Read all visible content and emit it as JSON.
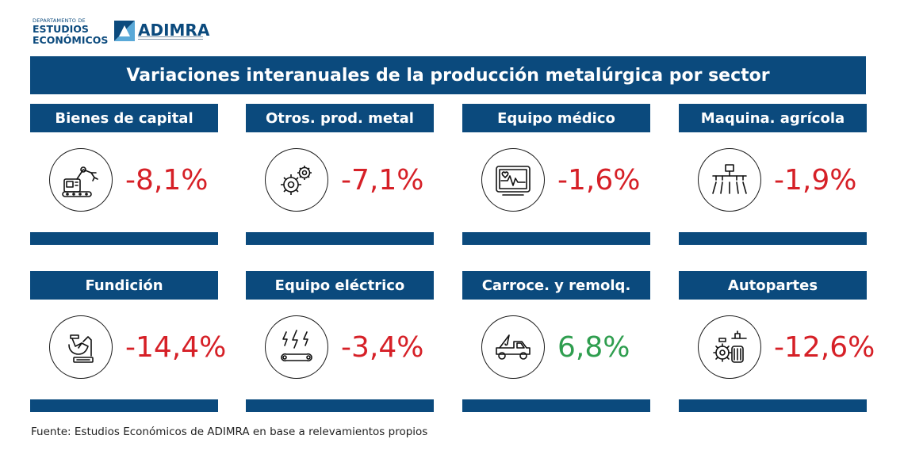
{
  "header": {
    "dept_small": "DEPARTAMENTO DE",
    "dept_line1": "ESTUDIOS",
    "dept_line2": "ECONÓMICOS",
    "brand": "ADIMRA",
    "brand_color": "#0b4a7d"
  },
  "title": "Variaciones interanuales de la producción metalúrgica por sector",
  "colors": {
    "header_bg": "#0b4a7d",
    "negative": "#d62027",
    "positive": "#2f9e4f"
  },
  "sectors": [
    {
      "name": "Bienes de capital",
      "value": "-8,1%",
      "trend": "negative",
      "icon": "robot-arm-icon"
    },
    {
      "name": "Otros. prod. metal",
      "value": "-7,1%",
      "trend": "negative",
      "icon": "gears-icon"
    },
    {
      "name": "Equipo médico",
      "value": "-1,6%",
      "trend": "negative",
      "icon": "heart-monitor-icon"
    },
    {
      "name": "Maquina. agrícola",
      "value": "-1,9%",
      "trend": "negative",
      "icon": "sprayer-icon"
    },
    {
      "name": "Fundición",
      "value": "-14,4%",
      "trend": "negative",
      "icon": "foundry-ladle-icon"
    },
    {
      "name": "Equipo eléctrico",
      "value": "-3,4%",
      "trend": "negative",
      "icon": "electric-wrench-icon"
    },
    {
      "name": "Carroce. y remolq.",
      "value": "6,8%",
      "trend": "positive",
      "icon": "tow-truck-icon"
    },
    {
      "name": "Autopartes",
      "value": "-12,6%",
      "trend": "negative",
      "icon": "autoparts-icon"
    }
  ],
  "source": "Fuente: Estudios Económicos de ADIMRA en base a relevamientos propios"
}
